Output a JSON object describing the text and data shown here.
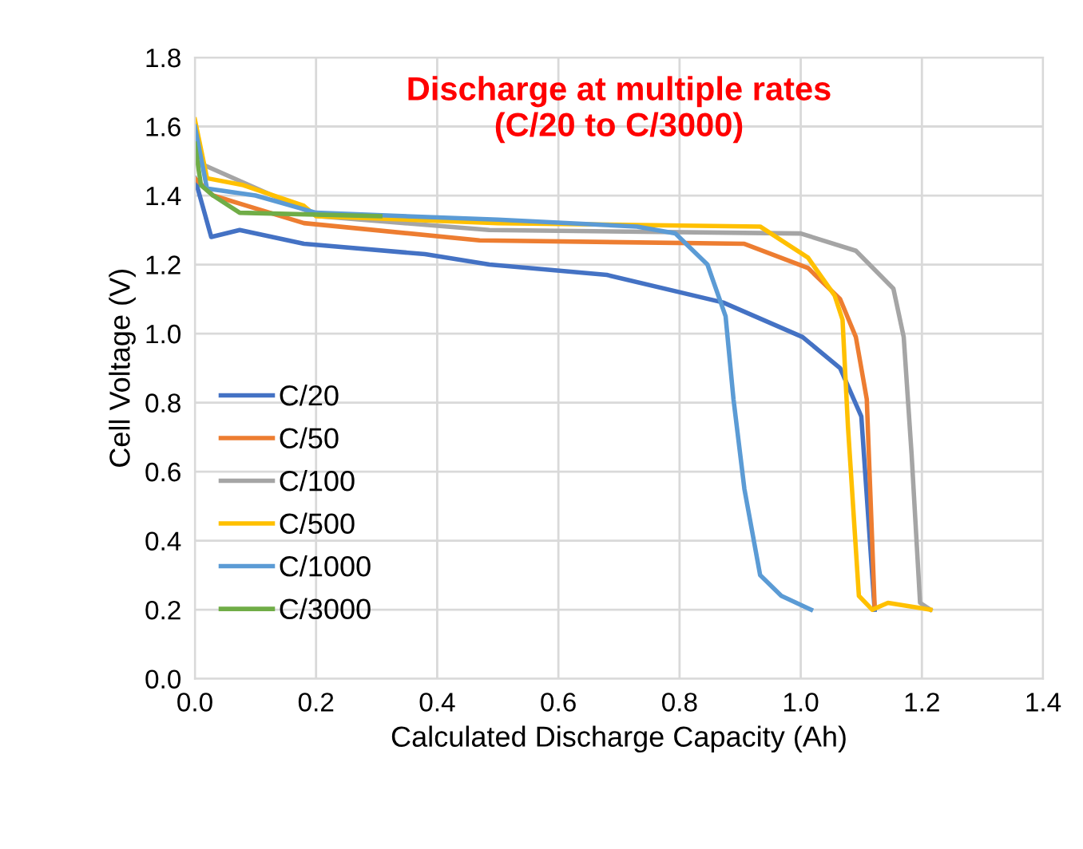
{
  "chart_data": {
    "type": "line",
    "title": "Discharge at multiple rates\n(C/20 to C/3000)",
    "xlabel": "Calculated Discharge Capacity (Ah)",
    "ylabel": "Cell Voltage (V)",
    "xlim": [
      0,
      1.4
    ],
    "xticks": [
      {
        "value": 0,
        "label": "0.0"
      },
      0.2,
      0.4,
      0.6,
      0.8,
      {
        "value": 1,
        "label": "1.0"
      },
      1.2,
      1.4
    ],
    "ylim": [
      0,
      1.8
    ],
    "yticks": [
      {
        "value": 0,
        "label": "0.0"
      },
      0.2,
      0.4,
      0.6,
      0.8,
      {
        "value": 1,
        "label": "1.0"
      },
      1.2,
      1.4,
      1.6,
      1.8
    ],
    "grid": true,
    "legend": "left",
    "marker": "none",
    "line_style": "solid",
    "series": [
      {
        "name": "C/20",
        "color": "#4472c4",
        "x": [
          0,
          0.027,
          0.074,
          0.18,
          0.38,
          0.486,
          0.68,
          0.872,
          1.003,
          1.065,
          1.1,
          1.122
        ],
        "values": [
          1.45,
          1.28,
          1.3,
          1.26,
          1.23,
          1.2,
          1.17,
          1.09,
          0.99,
          0.9,
          0.76,
          0.2
        ]
      },
      {
        "name": "C/50",
        "color": "#ed7d31",
        "x": [
          0,
          0.03,
          0.18,
          0.47,
          0.907,
          1.012,
          1.065,
          1.091,
          1.109,
          1.122
        ],
        "values": [
          1.45,
          1.4,
          1.32,
          1.27,
          1.26,
          1.19,
          1.1,
          0.99,
          0.81,
          0.21
        ]
      },
      {
        "name": "C/100",
        "color": "#a5a5a5",
        "x": [
          0,
          0.205,
          0.486,
          1.0,
          1.091,
          1.153,
          1.17,
          1.183,
          1.197,
          1.214
        ],
        "values": [
          1.5,
          1.34,
          1.3,
          1.29,
          1.24,
          1.13,
          0.99,
          0.65,
          0.22,
          0.2
        ]
      },
      {
        "name": "C/500",
        "color": "#ffc000",
        "x": [
          0,
          0.02,
          0.08,
          0.18,
          0.2,
          0.5,
          0.933,
          1.012,
          1.056,
          1.069,
          1.078,
          1.096,
          1.118,
          1.144,
          1.214
        ],
        "values": [
          1.62,
          1.45,
          1.43,
          1.37,
          1.34,
          1.32,
          1.31,
          1.22,
          1.11,
          1.04,
          0.73,
          0.24,
          0.2,
          0.22,
          0.2
        ]
      },
      {
        "name": "C/1000",
        "color": "#5b9bd5",
        "x": [
          0,
          0.02,
          0.1,
          0.2,
          0.5,
          0.73,
          0.793,
          0.846,
          0.876,
          0.889,
          0.907,
          0.933,
          0.968,
          1.017
        ],
        "values": [
          1.6,
          1.42,
          1.4,
          1.35,
          1.33,
          1.31,
          1.29,
          1.2,
          1.05,
          0.81,
          0.55,
          0.3,
          0.24,
          0.2
        ]
      },
      {
        "name": "C/3000",
        "color": "#70ad47",
        "x": [
          0,
          0.01,
          0.03,
          0.074,
          0.306
        ],
        "values": [
          1.55,
          1.43,
          1.4,
          1.35,
          1.34
        ]
      }
    ]
  }
}
